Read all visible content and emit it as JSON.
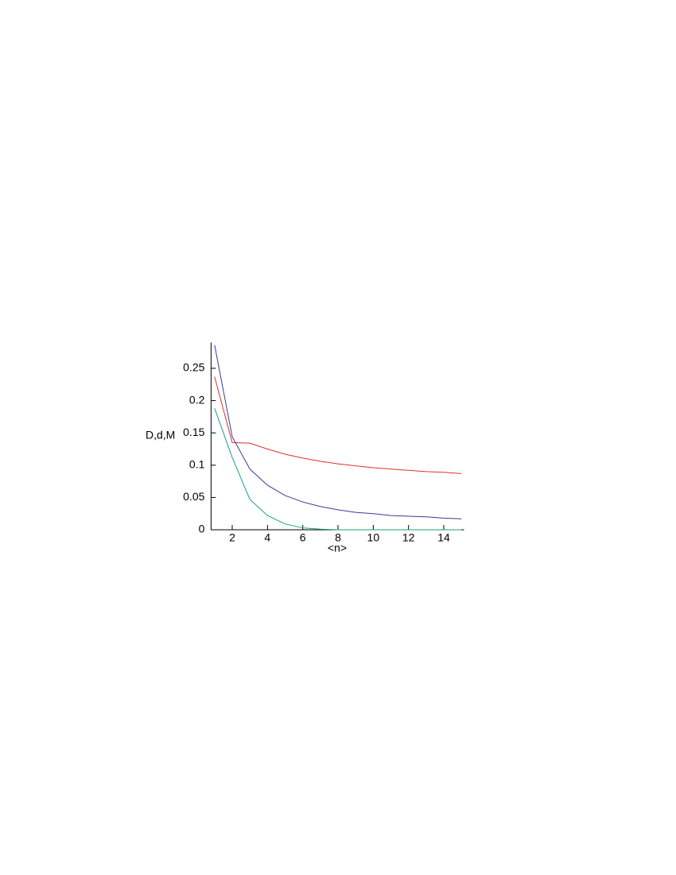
{
  "chart_data": {
    "type": "line",
    "y_label": "D,d,M",
    "x_label": "<n>",
    "x": [
      1,
      2,
      3,
      4,
      5,
      6,
      7,
      8,
      9,
      10,
      11,
      12,
      13,
      14,
      15
    ],
    "series": [
      {
        "color": "#e0302a",
        "values": [
          0.237,
          0.135,
          0.134,
          0.125,
          0.117,
          0.111,
          0.106,
          0.102,
          0.099,
          0.096,
          0.094,
          0.092,
          0.09,
          0.089,
          0.087
        ]
      },
      {
        "color": "#3a3a9a",
        "values": [
          0.286,
          0.144,
          0.094,
          0.069,
          0.053,
          0.043,
          0.036,
          0.031,
          0.027,
          0.025,
          0.022,
          0.021,
          0.02,
          0.018,
          0.017
        ]
      },
      {
        "color": "#18a080",
        "values": [
          0.188,
          0.112,
          0.047,
          0.022,
          0.009,
          0.003,
          0.001,
          0,
          0,
          0,
          0,
          0,
          0,
          0,
          0
        ]
      }
    ],
    "xlim": [
      0.8,
      15.15
    ],
    "ylim": [
      0,
      0.29
    ],
    "xticks": [
      2,
      4,
      6,
      8,
      10,
      12,
      14
    ],
    "yticks": [
      0,
      0.05,
      0.1,
      0.15,
      0.2,
      0.25
    ]
  }
}
